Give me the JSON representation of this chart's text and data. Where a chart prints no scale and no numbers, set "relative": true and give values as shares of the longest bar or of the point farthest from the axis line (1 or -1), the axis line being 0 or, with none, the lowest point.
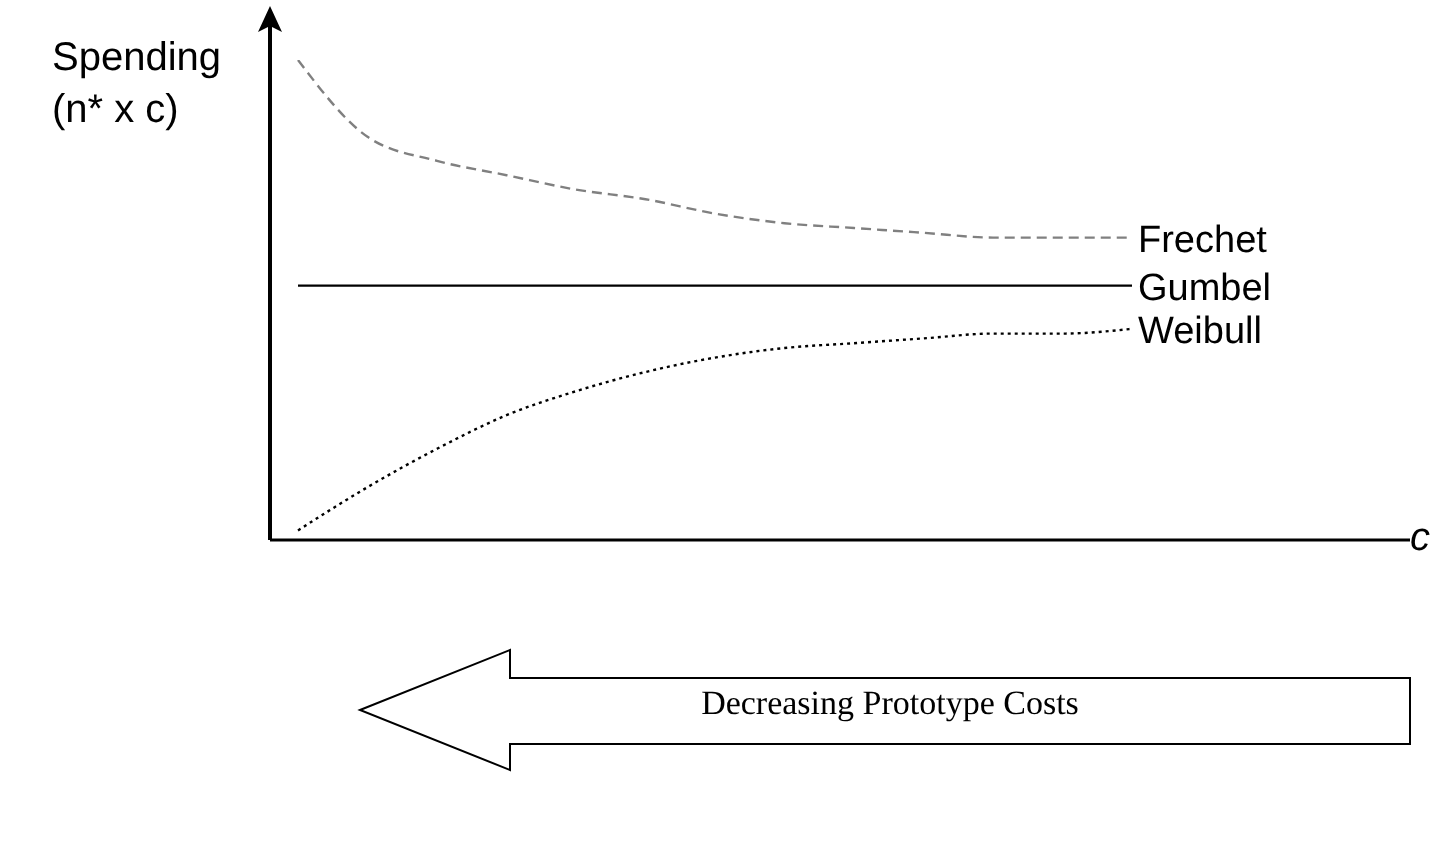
{
  "chart_data": {
    "type": "line",
    "relative": true,
    "ylabel": "Spending (n* x c)",
    "xlabel": "c",
    "grid": false,
    "categories": [
      null,
      null,
      null,
      null,
      null,
      null,
      null,
      null,
      null,
      null,
      null,
      null,
      null,
      null,
      null,
      null,
      null
    ],
    "series": [
      {
        "name": "Frechet",
        "color": "#808080",
        "line_style": "dashed",
        "values": [
          1,
          0.84,
          0.79,
          0.76,
          0.73,
          0.71,
          0.68,
          0.66,
          0.65,
          0.64,
          0.63,
          0.63,
          0.63,
          null,
          null,
          null,
          null
        ]
      },
      {
        "name": "Gumbel",
        "color": "#000000",
        "line_style": "solid",
        "values": [
          0.53,
          0.53,
          0.53,
          0.53,
          0.53,
          0.53,
          0.53,
          0.53,
          0.53,
          0.53,
          0.53,
          0.53,
          0.53,
          null,
          null,
          null,
          null
        ]
      },
      {
        "name": "Weibull",
        "color": "#000000",
        "line_style": "dotted",
        "values": [
          0.02,
          0.11,
          0.19,
          0.26,
          0.31,
          0.35,
          0.38,
          0.4,
          0.41,
          0.42,
          0.43,
          0.43,
          0.44,
          null,
          null,
          null,
          null
        ]
      }
    ],
    "annotations": [
      "Decreasing Prototype Costs"
    ]
  }
}
